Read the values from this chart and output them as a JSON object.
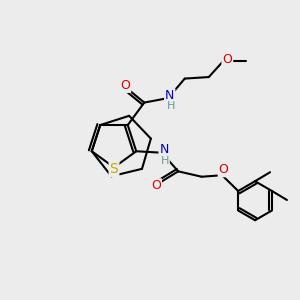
{
  "bg_color": "#ececec",
  "atom_colors": {
    "C": "#000000",
    "N": "#0000cc",
    "O": "#dd0000",
    "S": "#ccaa00",
    "H": "#6a9a9a"
  },
  "bond_color": "#000000",
  "bond_width": 1.5,
  "figsize": [
    3.0,
    3.0
  ],
  "dpi": 100,
  "xlim": [
    0,
    10
  ],
  "ylim": [
    0,
    10
  ]
}
